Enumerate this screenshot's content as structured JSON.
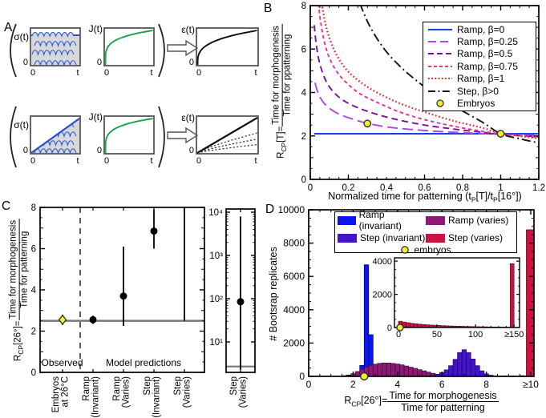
{
  "figure_label": {
    "a": "A",
    "b": "B",
    "c": "C",
    "d": "D"
  },
  "colors": {
    "embryo_fill": "#f5ee30",
    "embryo_stroke": "#333333",
    "reference_line": "#787878",
    "schematic_axis": "#555555",
    "sigma_blue": "#2a50c8",
    "flux_green": "#18a24c"
  },
  "panel_a": {
    "sigma_label": "σ(t)",
    "j_label": "J(t)",
    "eps_label": "ε(t)",
    "zero_label": "0",
    "t_label": "t"
  },
  "panel_b": {
    "ylabel": {
      "r": "R",
      "sub": "CP",
      "eq": "[T]=",
      "numerator": "Time for morphogenesis",
      "denominator": "Time for ppatterning"
    },
    "xlabel": {
      "p1": "Normalized time for patterning (t",
      "s1": "P",
      "p2": "[T]/t",
      "s2": "P",
      "p3": "[16°])"
    },
    "xtick_labels": [
      "0",
      "0.2",
      "0.4",
      "0.6",
      "0.8",
      "1",
      "1.2"
    ],
    "ytick_labels": [
      "0",
      "2",
      "4",
      "6",
      "8"
    ],
    "legend": [
      {
        "label": "Ramp, β=0",
        "color": "#1540f0",
        "dash": "solid"
      },
      {
        "label": "Ramp, β=0.25",
        "color": "#a848e8",
        "dash": "longdash"
      },
      {
        "label": "Ramp, β=0.5",
        "color": "#7a10a0",
        "dash": "dash"
      },
      {
        "label": "Ramp, β=0.75",
        "color": "#e8309c",
        "dash": "shortdash"
      },
      {
        "label": "Ramp, β=1",
        "color": "#e82222",
        "dash": "dot"
      },
      {
        "label": "Step, β>0",
        "color": "#141414",
        "dash": "dashdot"
      },
      {
        "label": "Embryos",
        "color": "#f5ee30",
        "marker": "circle"
      }
    ]
  },
  "panel_c": {
    "ylabel": {
      "r": "R",
      "sub": "CP",
      "eq": "[26°]=",
      "numerator": "Time for morphogenesis",
      "denominator": "Time for patterning"
    },
    "ytick_labels": [
      "0",
      "2",
      "4",
      "6",
      "8"
    ],
    "region_observed": "Observed",
    "region_model": "Model predictions",
    "categories": [
      [
        "Embryos",
        "at 26°C"
      ],
      [
        "Ramp",
        "(Invariant)"
      ],
      [
        "Ramp",
        "(Varies)"
      ],
      [
        "Step",
        "(Invariant)"
      ],
      [
        "Step",
        "(Varies)"
      ]
    ],
    "log_panel": {
      "ytick_labels": [
        "10¹",
        "10²",
        "10³",
        "10⁴"
      ],
      "category": [
        "Step",
        "(Varies)"
      ]
    }
  },
  "panel_d": {
    "ylabel": "# Bootsrap replicates",
    "xlabel": {
      "r": "R",
      "sub": "CP",
      "eq": "[26°]= ",
      "numerator": "Time for morphogenesis",
      "denominator": "Time for patterning"
    },
    "xtick_labels": [
      "0",
      "2",
      "4",
      "6",
      "8",
      "≥10"
    ],
    "ytick_labels": [
      "0",
      "2000",
      "4000",
      "6000",
      "8000",
      "10000"
    ],
    "legend": [
      {
        "label": "Ramp (invariant)",
        "color": "#0a14f0"
      },
      {
        "label": "Ramp (varies)",
        "color": "#8c1878"
      },
      {
        "label": "Step (invariant)",
        "color": "#4414cc"
      },
      {
        "label": "Step (varies)",
        "color": "#cc1240"
      },
      {
        "label": "embryos",
        "color": "#f5ee30",
        "marker": "circle"
      }
    ],
    "inset": {
      "xtick_labels": [
        "0",
        "50",
        "100",
        "≥150"
      ],
      "ytick_labels": [
        "0",
        "2000",
        "4000"
      ]
    }
  },
  "chart_data": [
    {
      "id": "panel_b",
      "type": "line",
      "xlabel": "Normalized time for patterning (tP[T]/tP[16°])",
      "ylabel": "RCP[T] = Time for morphogenesis / Time for ppatterning",
      "xlim": [
        0,
        1.2
      ],
      "ylim": [
        0,
        8
      ],
      "xticks": [
        0,
        0.2,
        0.4,
        0.6,
        0.8,
        1.0,
        1.2
      ],
      "yticks": [
        0,
        2,
        4,
        6,
        8
      ],
      "legend_position": "upper right",
      "grid": false,
      "series": [
        {
          "name": "Ramp, β=0",
          "color": "#1540f0",
          "dash": "solid",
          "points": [
            [
              0.02,
              2.1
            ],
            [
              1.2,
              2.1
            ]
          ]
        },
        {
          "name": "Ramp, β=0.25",
          "color": "#a848e8",
          "dash": "longdash",
          "points": [
            [
              0.025,
              4.45
            ],
            [
              0.04,
              4.0
            ],
            [
              0.06,
              3.65
            ],
            [
              0.09,
              3.35
            ],
            [
              0.13,
              3.1
            ],
            [
              0.18,
              2.9
            ],
            [
              0.25,
              2.7
            ],
            [
              0.3,
              2.58
            ],
            [
              0.4,
              2.42
            ],
            [
              0.5,
              2.32
            ],
            [
              0.65,
              2.22
            ],
            [
              0.8,
              2.15
            ],
            [
              1.0,
              2.08
            ],
            [
              1.2,
              2.02
            ]
          ]
        },
        {
          "name": "Ramp, β=0.5",
          "color": "#7a10a0",
          "dash": "dash",
          "points": [
            [
              0.021,
              7.1
            ],
            [
              0.03,
              6.3
            ],
            [
              0.045,
              5.5
            ],
            [
              0.065,
              4.9
            ],
            [
              0.09,
              4.4
            ],
            [
              0.13,
              3.95
            ],
            [
              0.18,
              3.6
            ],
            [
              0.25,
              3.3
            ],
            [
              0.34,
              3.02
            ],
            [
              0.45,
              2.76
            ],
            [
              0.6,
              2.5
            ],
            [
              0.75,
              2.32
            ],
            [
              0.9,
              2.17
            ],
            [
              1.0,
              2.08
            ],
            [
              1.2,
              1.96
            ]
          ]
        },
        {
          "name": "Ramp, β=0.75",
          "color": "#e8309c",
          "dash": "shortdash",
          "points": [
            [
              0.042,
              8.1
            ],
            [
              0.055,
              7.2
            ],
            [
              0.075,
              6.3
            ],
            [
              0.1,
              5.6
            ],
            [
              0.14,
              4.95
            ],
            [
              0.19,
              4.45
            ],
            [
              0.26,
              3.95
            ],
            [
              0.35,
              3.55
            ],
            [
              0.47,
              3.1
            ],
            [
              0.6,
              2.75
            ],
            [
              0.75,
              2.45
            ],
            [
              0.9,
              2.22
            ],
            [
              1.0,
              2.1
            ],
            [
              1.2,
              1.93
            ]
          ]
        },
        {
          "name": "Ramp, β=1",
          "color": "#e82222",
          "dash": "dot",
          "points": [
            [
              0.06,
              8.1
            ],
            [
              0.08,
              7.15
            ],
            [
              0.105,
              6.4
            ],
            [
              0.14,
              5.7
            ],
            [
              0.19,
              5.05
            ],
            [
              0.26,
              4.5
            ],
            [
              0.35,
              4.0
            ],
            [
              0.47,
              3.5
            ],
            [
              0.6,
              3.1
            ],
            [
              0.75,
              2.7
            ],
            [
              0.9,
              2.38
            ],
            [
              1.0,
              2.13
            ],
            [
              1.2,
              1.88
            ]
          ]
        },
        {
          "name": "Step, β>0",
          "color": "#141414",
          "dash": "dashdot",
          "points": [
            [
              0.26,
              8.1
            ],
            [
              0.31,
              7.1
            ],
            [
              0.38,
              6.1
            ],
            [
              0.46,
              5.3
            ],
            [
              0.55,
              4.6
            ],
            [
              0.65,
              3.95
            ],
            [
              0.77,
              3.3
            ],
            [
              0.9,
              2.65
            ],
            [
              1.0,
              2.1
            ],
            [
              1.1,
              1.87
            ],
            [
              1.2,
              1.68
            ]
          ]
        },
        {
          "name": "Embryos",
          "color": "#f5ee30",
          "marker": "circle",
          "points": [
            [
              0.3,
              2.57
            ],
            [
              1.0,
              2.1
            ]
          ]
        }
      ]
    },
    {
      "id": "panel_c_main",
      "type": "scatter",
      "ylim": [
        0,
        8
      ],
      "yticks": [
        0,
        2,
        4,
        6,
        8
      ],
      "reference_line_y": 2.5,
      "points": [
        {
          "category": "Embryos at 26°C",
          "y": 2.55,
          "err_lo": 2.3,
          "err_hi": 2.8,
          "marker": "yellow-diamond"
        },
        {
          "category": "Ramp (Invariant)",
          "y": 2.55,
          "err_lo": 2.35,
          "err_hi": 2.75,
          "marker": "black-circle"
        },
        {
          "category": "Ramp (Varies)",
          "y": 3.7,
          "err_lo": 2.25,
          "err_hi": 6.1,
          "marker": "black-circle"
        },
        {
          "category": "Step (Invariant)",
          "y": 6.85,
          "err_lo": 6.0,
          "err_hi": 7.9,
          "marker": "black-circle"
        },
        {
          "category": "Step (Varies)",
          "y": null,
          "err_lo": 2.5,
          "err_hi": 8.2,
          "marker": "none"
        }
      ]
    },
    {
      "id": "panel_c_log",
      "type": "scatter-log",
      "ylim": [
        2,
        10000
      ],
      "yticks": [
        10,
        100,
        1000,
        10000
      ],
      "reference_line_y": 2.7,
      "points": [
        {
          "category": "Step (Varies)",
          "y": 85,
          "err_lo": 2.3,
          "err_hi": 8000,
          "marker": "black-circle"
        }
      ]
    },
    {
      "id": "panel_d",
      "type": "histogram",
      "xlim": [
        0,
        10.15
      ],
      "ylim": [
        0,
        10000
      ],
      "xticks": [
        0,
        2,
        4,
        6,
        8,
        10
      ],
      "yticks": [
        0,
        2000,
        4000,
        6000,
        8000,
        10000
      ],
      "bin_width": 0.2,
      "embryo_marker": {
        "x": 2.5,
        "y": 0
      },
      "series": [
        {
          "name": "Step (varies)",
          "color": "#cc1240",
          "edge": "#55051a",
          "bins": [
            [
              1.5,
              40
            ],
            [
              1.7,
              80
            ],
            [
              1.9,
              95
            ],
            [
              2.1,
              60
            ],
            [
              8.3,
              20
            ],
            [
              8.7,
              25
            ],
            [
              9.1,
              20
            ],
            [
              9.5,
              40
            ],
            [
              9.8,
              8800
            ]
          ]
        },
        {
          "name": "Ramp (invariant)",
          "color": "#0a14f0",
          "edge": "#000870",
          "bins": [
            [
              1.9,
              60
            ],
            [
              2.1,
              210
            ],
            [
              2.3,
              660
            ],
            [
              2.5,
              6700
            ],
            [
              2.7,
              2500
            ],
            [
              2.9,
              240
            ],
            [
              3.1,
              60
            ]
          ]
        },
        {
          "name": "Ramp (varies)",
          "color": "#8c1878",
          "edge": "#38082f",
          "bins": [
            [
              1.7,
              60
            ],
            [
              1.9,
              160
            ],
            [
              2.1,
              290
            ],
            [
              2.3,
              430
            ],
            [
              2.5,
              560
            ],
            [
              2.7,
              660
            ],
            [
              2.9,
              730
            ],
            [
              3.1,
              780
            ],
            [
              3.3,
              805
            ],
            [
              3.5,
              800
            ],
            [
              3.7,
              775
            ],
            [
              3.9,
              740
            ],
            [
              4.1,
              690
            ],
            [
              4.3,
              620
            ],
            [
              4.5,
              550
            ],
            [
              4.7,
              480
            ],
            [
              4.9,
              400
            ],
            [
              5.1,
              330
            ],
            [
              5.3,
              255
            ],
            [
              5.5,
              185
            ],
            [
              5.7,
              125
            ]
          ]
        },
        {
          "name": "Step (invariant)",
          "color": "#4414cc",
          "edge": "#1c0660",
          "bins": [
            [
              5.5,
              60
            ],
            [
              5.7,
              120
            ],
            [
              5.9,
              230
            ],
            [
              6.1,
              390
            ],
            [
              6.3,
              640
            ],
            [
              6.5,
              1020
            ],
            [
              6.7,
              1430
            ],
            [
              6.9,
              1600
            ],
            [
              7.1,
              1430
            ],
            [
              7.3,
              1040
            ],
            [
              7.5,
              640
            ],
            [
              7.7,
              330
            ],
            [
              7.9,
              155
            ],
            [
              8.1,
              70
            ]
          ]
        }
      ]
    },
    {
      "id": "panel_d_inset",
      "type": "histogram",
      "xlim": [
        0,
        152
      ],
      "ylim": [
        0,
        4200
      ],
      "xticks": [
        0,
        50,
        100,
        150
      ],
      "yticks": [
        0,
        2000,
        4000
      ],
      "bin_width": 5,
      "embryo_marker": {
        "x": 2,
        "y": 0
      },
      "series": [
        {
          "name": "Step (varies)",
          "color": "#cc1240",
          "edge": "#55051a",
          "bins": [
            [
              0,
              380
            ],
            [
              5,
              330
            ],
            [
              10,
              290
            ],
            [
              15,
              255
            ],
            [
              20,
              228
            ],
            [
              25,
              203
            ],
            [
              30,
              182
            ],
            [
              35,
              165
            ],
            [
              40,
              150
            ],
            [
              45,
              137
            ],
            [
              50,
              125
            ],
            [
              55,
              114
            ],
            [
              60,
              104
            ],
            [
              65,
              95
            ],
            [
              70,
              87
            ],
            [
              75,
              80
            ],
            [
              80,
              73
            ],
            [
              85,
              67
            ],
            [
              90,
              61
            ],
            [
              95,
              56
            ],
            [
              100,
              51
            ],
            [
              105,
              47
            ],
            [
              110,
              43
            ],
            [
              115,
              39
            ],
            [
              120,
              36
            ],
            [
              125,
              33
            ],
            [
              130,
              30
            ],
            [
              135,
              28
            ],
            [
              140,
              26
            ],
            [
              145,
              3850
            ]
          ]
        }
      ]
    }
  ]
}
